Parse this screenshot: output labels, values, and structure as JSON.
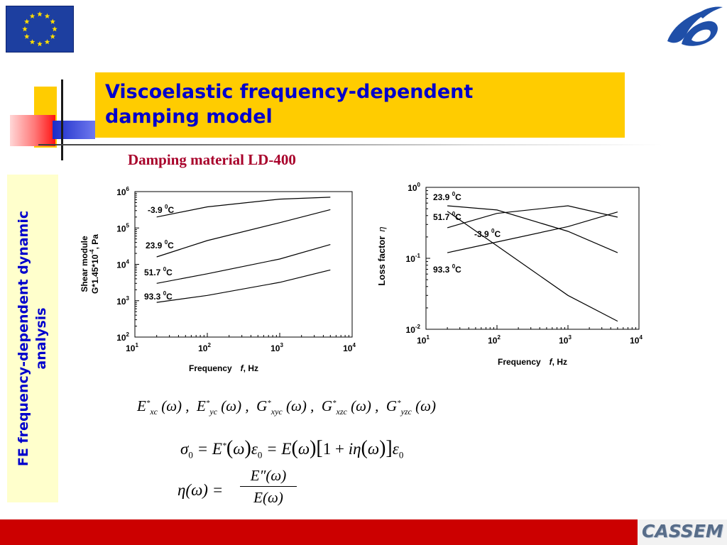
{
  "title": {
    "line1": "Viscoelastic frequency-dependent",
    "line2": "damping model"
  },
  "subtitle": "Damping material LD-400",
  "side_label": {
    "line1": "FE  frequency-dependent dynamic",
    "line2": "analysis"
  },
  "footer": {
    "logo_text": "CASSEM",
    "bar_color": "#cc0000"
  },
  "colors": {
    "title_bg": "#ffcc00",
    "title_text": "#0000cc",
    "subtitle": "#a8002a",
    "side_bg": "#ffffcc"
  },
  "icons": {
    "top_left": "eu-flag-icon",
    "top_right": "fp6-logo-icon"
  },
  "chart_data": [
    {
      "type": "line",
      "ylabel_line1": "Shear module",
      "ylabel_line2": "G*1.45*10",
      "ylabel_exp": "-4",
      "ylabel_tail": ", Pa",
      "xlabel_main": "Frequency",
      "xlabel_var": "f",
      "xlabel_unit": ", Hz",
      "x_scale": "log",
      "y_scale": "log",
      "xlim": [
        10,
        10000
      ],
      "ylim": [
        100,
        1000000
      ],
      "x_ticks": [
        {
          "base": "10",
          "exp": "1"
        },
        {
          "base": "10",
          "exp": "2"
        },
        {
          "base": "10",
          "exp": "3"
        },
        {
          "base": "10",
          "exp": "4"
        }
      ],
      "y_ticks": [
        {
          "base": "10",
          "exp": "2"
        },
        {
          "base": "10",
          "exp": "3"
        },
        {
          "base": "10",
          "exp": "4"
        },
        {
          "base": "10",
          "exp": "5"
        },
        {
          "base": "10",
          "exp": "6"
        }
      ],
      "series": [
        {
          "name": "-3.9",
          "unit": "C",
          "deg": "0",
          "x": [
            20,
            100,
            1000,
            5000
          ],
          "y": [
            200000,
            380000,
            620000,
            700000
          ]
        },
        {
          "name": "23.9",
          "unit": "C",
          "deg": "0",
          "x": [
            20,
            100,
            1000,
            5000
          ],
          "y": [
            16000,
            45000,
            140000,
            320000
          ]
        },
        {
          "name": "51.7",
          "unit": "C",
          "deg": "0",
          "x": [
            20,
            100,
            1000,
            5000
          ],
          "y": [
            3000,
            5500,
            14000,
            35000
          ]
        },
        {
          "name": "93.3",
          "unit": "C",
          "deg": "0",
          "x": [
            20,
            100,
            1000,
            5000
          ],
          "y": [
            900,
            1400,
            3200,
            7000
          ]
        }
      ]
    },
    {
      "type": "line",
      "ylabel": "Loss factor",
      "ylabel_symbol": "η",
      "xlabel_main": "Frequency",
      "xlabel_var": "f",
      "xlabel_unit": ", Hz",
      "x_scale": "log",
      "y_scale": "log",
      "xlim": [
        10,
        10000
      ],
      "ylim": [
        0.01,
        1
      ],
      "x_ticks": [
        {
          "base": "10",
          "exp": "1"
        },
        {
          "base": "10",
          "exp": "2"
        },
        {
          "base": "10",
          "exp": "3"
        },
        {
          "base": "10",
          "exp": "4"
        }
      ],
      "y_ticks": [
        {
          "base": "10",
          "exp": "-2"
        },
        {
          "base": "10",
          "exp": "-1"
        },
        {
          "base": "10",
          "exp": "0"
        }
      ],
      "series": [
        {
          "name": "23.9",
          "unit": "C",
          "deg": "0",
          "x": [
            20,
            100,
            1000,
            5000
          ],
          "y": [
            0.55,
            0.48,
            0.24,
            0.12
          ]
        },
        {
          "name": "51.7",
          "unit": "C",
          "deg": "0",
          "x": [
            20,
            100,
            1000,
            5000
          ],
          "y": [
            0.27,
            0.43,
            0.55,
            0.38
          ]
        },
        {
          "name": "-3.9",
          "unit": "C",
          "deg": "0",
          "x": [
            20,
            100,
            1000,
            5000
          ],
          "y": [
            0.46,
            0.15,
            0.03,
            0.013
          ]
        },
        {
          "name": "93.3",
          "unit": "C",
          "deg": "0",
          "x": [
            20,
            100,
            1000,
            5000
          ],
          "y": [
            0.12,
            0.17,
            0.28,
            0.45
          ]
        }
      ]
    }
  ]
}
